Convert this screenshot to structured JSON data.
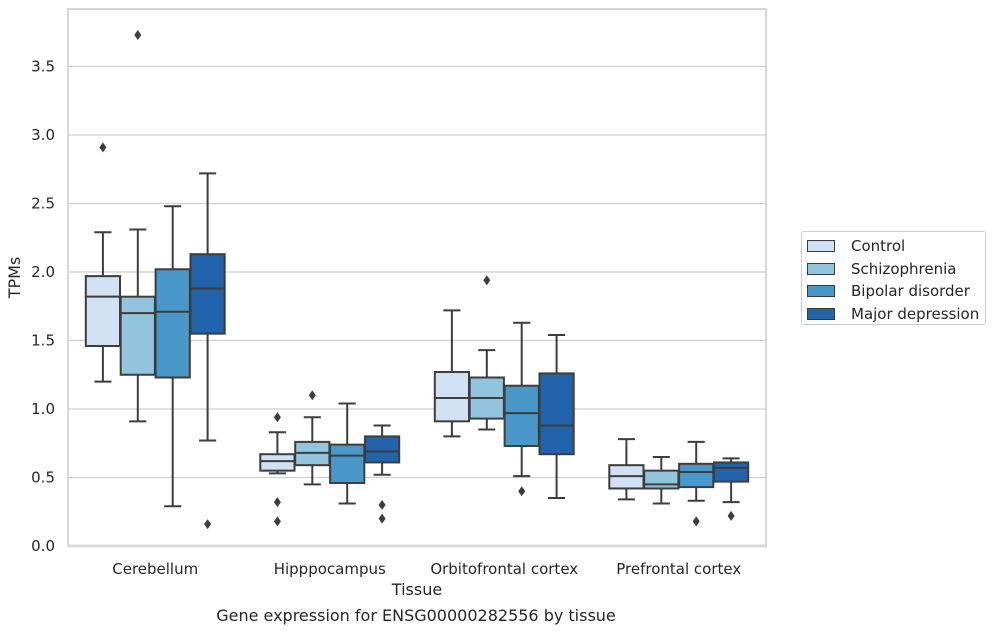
{
  "chart_data": {
    "type": "box",
    "title": "",
    "caption": "Gene expression for ENSG00000282556 by tissue",
    "xlabel": "Tissue",
    "ylabel": "TPMs",
    "ylim": [
      0,
      3.92
    ],
    "yticks": [
      "0.0",
      "0.5",
      "1.0",
      "1.5",
      "2.0",
      "2.5",
      "3.0",
      "3.5"
    ],
    "grid": "horizontal",
    "legend_position": "right",
    "categories": [
      "Cerebellum",
      "Hipppocampus",
      "Orbitofrontal cortex",
      "Prefrontal cortex"
    ],
    "series": [
      {
        "name": "Control",
        "color": "#cfe1f2",
        "boxes": [
          {
            "whisker_low": 1.2,
            "q1": 1.46,
            "median": 1.82,
            "q3": 1.97,
            "whisker_high": 2.29,
            "outliers": [
              2.91
            ]
          },
          {
            "whisker_low": 0.53,
            "q1": 0.55,
            "median": 0.62,
            "q3": 0.67,
            "whisker_high": 0.83,
            "outliers": [
              0.94,
              0.32,
              0.18
            ]
          },
          {
            "whisker_low": 0.8,
            "q1": 0.91,
            "median": 1.08,
            "q3": 1.27,
            "whisker_high": 1.72,
            "outliers": []
          },
          {
            "whisker_low": 0.34,
            "q1": 0.42,
            "median": 0.51,
            "q3": 0.59,
            "whisker_high": 0.78,
            "outliers": []
          }
        ]
      },
      {
        "name": "Schizophrenia",
        "color": "#93c4de",
        "boxes": [
          {
            "whisker_low": 0.91,
            "q1": 1.25,
            "median": 1.7,
            "q3": 1.82,
            "whisker_high": 2.31,
            "outliers": [
              3.73
            ]
          },
          {
            "whisker_low": 0.45,
            "q1": 0.59,
            "median": 0.68,
            "q3": 0.76,
            "whisker_high": 0.94,
            "outliers": [
              1.1
            ]
          },
          {
            "whisker_low": 0.85,
            "q1": 0.93,
            "median": 1.08,
            "q3": 1.23,
            "whisker_high": 1.43,
            "outliers": [
              1.94
            ]
          },
          {
            "whisker_low": 0.31,
            "q1": 0.42,
            "median": 0.45,
            "q3": 0.55,
            "whisker_high": 0.65,
            "outliers": []
          }
        ]
      },
      {
        "name": "Bipolar disorder",
        "color": "#4a98c9",
        "boxes": [
          {
            "whisker_low": 0.29,
            "q1": 1.23,
            "median": 1.71,
            "q3": 2.02,
            "whisker_high": 2.48,
            "outliers": []
          },
          {
            "whisker_low": 0.31,
            "q1": 0.46,
            "median": 0.66,
            "q3": 0.74,
            "whisker_high": 1.04,
            "outliers": []
          },
          {
            "whisker_low": 0.51,
            "q1": 0.73,
            "median": 0.97,
            "q3": 1.17,
            "whisker_high": 1.63,
            "outliers": [
              0.4
            ]
          },
          {
            "whisker_low": 0.33,
            "q1": 0.43,
            "median": 0.54,
            "q3": 0.6,
            "whisker_high": 0.76,
            "outliers": [
              0.18
            ]
          }
        ]
      },
      {
        "name": "Major depression",
        "color": "#2164ab",
        "boxes": [
          {
            "whisker_low": 0.77,
            "q1": 1.55,
            "median": 1.88,
            "q3": 2.13,
            "whisker_high": 2.72,
            "outliers": [
              0.16
            ]
          },
          {
            "whisker_low": 0.52,
            "q1": 0.61,
            "median": 0.69,
            "q3": 0.8,
            "whisker_high": 0.88,
            "outliers": [
              0.3,
              0.2
            ]
          },
          {
            "whisker_low": 0.35,
            "q1": 0.67,
            "median": 0.88,
            "q3": 1.26,
            "whisker_high": 1.54,
            "outliers": []
          },
          {
            "whisker_low": 0.32,
            "q1": 0.47,
            "median": 0.57,
            "q3": 0.61,
            "whisker_high": 0.64,
            "outliers": [
              0.22
            ]
          }
        ]
      }
    ]
  }
}
